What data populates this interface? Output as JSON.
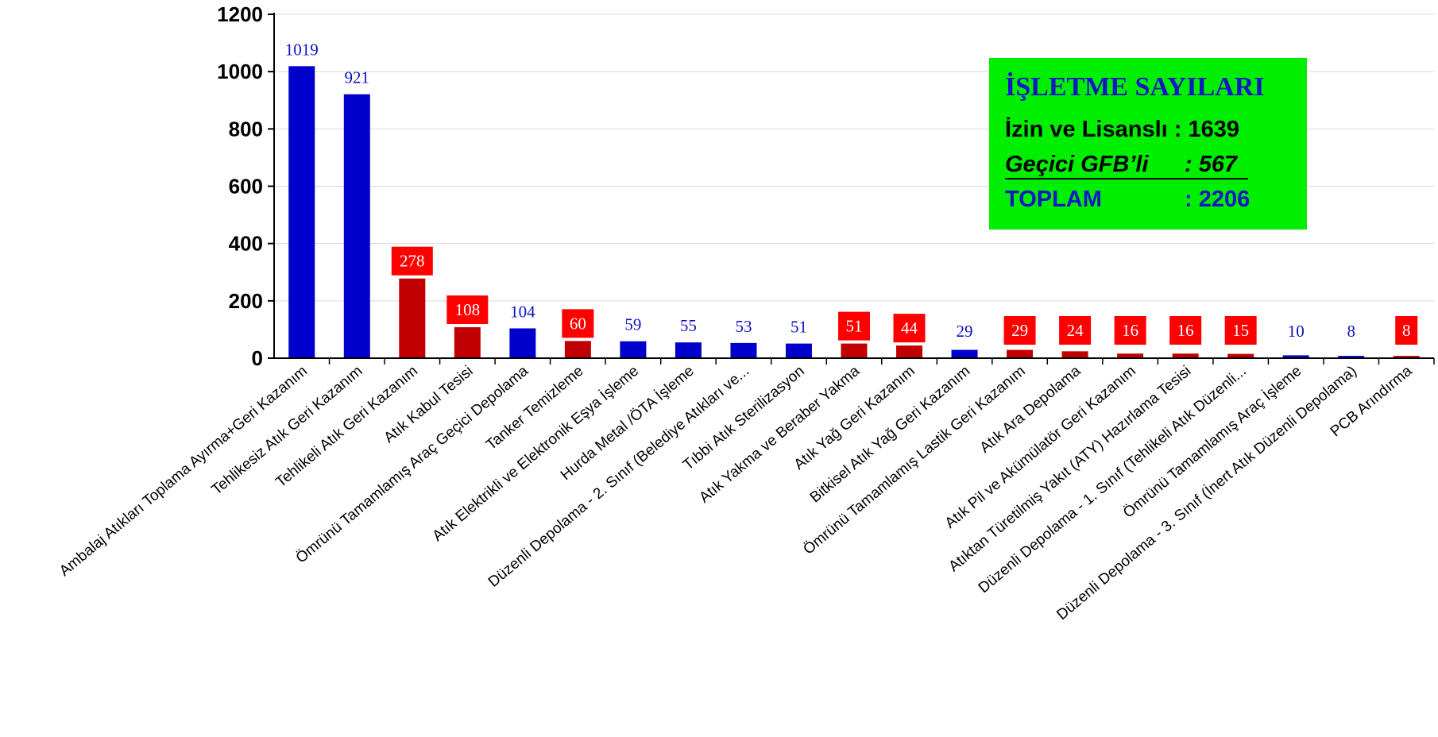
{
  "chart_data": {
    "type": "bar",
    "categories": [
      "Ambalaj Atıkları Toplama Ayırma+Geri Kazanım",
      "Tehlikesiz Atık Geri Kazanım",
      "Tehlikeli Atık Geri Kazanım",
      "Atık Kabul Tesisi",
      "Ömrünü Tamamlamış Araç Geçici Depolama",
      "Tanker Temizleme",
      "Atık Elektrikli ve Elektronik Eşya İşleme",
      "Hurda Metal /ÖTA İşleme",
      "Düzenli Depolama - 2. Sınıf (Belediye Atıkları ve...",
      "Tıbbi Atık Sterilizasyon",
      "Atık Yakma ve Beraber Yakma",
      "Atık Yağ Geri Kazanım",
      "Bitkisel Atık Yağ Geri Kazanım",
      "Ömrünü Tamamlamış Lastik Geri Kazanım",
      "Atık Ara Depolama",
      "Atık Pil ve Akümülatör Geri Kazanım",
      "Atıktan Türetilmiş Yakıt (ATY) Hazırlama Tesisi",
      "Düzenli Depolama - 1. Sınıf (Tehlikeli Atık Düzenli...",
      "Ömrünü Tamamlamış Araç İşleme",
      "Düzenli Depolama - 3. Sınıf (İnert Atık Düzenli Depolama)",
      "PCB Arındırma"
    ],
    "values": [
      1019,
      921,
      278,
      108,
      104,
      60,
      59,
      55,
      53,
      51,
      51,
      44,
      29,
      29,
      24,
      16,
      16,
      15,
      10,
      8,
      8
    ],
    "data_labels": [
      "1019",
      "921",
      "278",
      "108",
      "104",
      "60",
      "59",
      "55",
      "53",
      "51",
      "51",
      "44",
      "29",
      "29",
      "24",
      "16",
      "16",
      "15",
      "10",
      "8",
      "8"
    ],
    "bar_status": [
      "licensed",
      "licensed",
      "temporary",
      "temporary",
      "licensed",
      "temporary",
      "licensed",
      "licensed",
      "licensed",
      "licensed",
      "temporary",
      "temporary",
      "licensed",
      "temporary",
      "temporary",
      "temporary",
      "temporary",
      "temporary",
      "licensed",
      "licensed",
      "temporary"
    ],
    "colors": {
      "licensed": "#0000cc",
      "temporary": "#c00000",
      "label_licensed": "#1010c0",
      "label_box": "#ff0000",
      "grid": "#d9d9d9"
    },
    "ylim": [
      0,
      1200
    ],
    "yticks": [
      0,
      200,
      400,
      600,
      800,
      1000,
      1200
    ],
    "grid": true,
    "title": "",
    "xlabel": "",
    "ylabel": ""
  },
  "info_box": {
    "title": "İŞLETME SAYILARI",
    "line1_label": "İzin ve Lisanslı : 1639",
    "line2_label": "Geçici GFB’li",
    "line2_value": ":   567",
    "line3_label": "TOPLAM",
    "line3_value": ": 2206",
    "background": "#00ee00"
  }
}
